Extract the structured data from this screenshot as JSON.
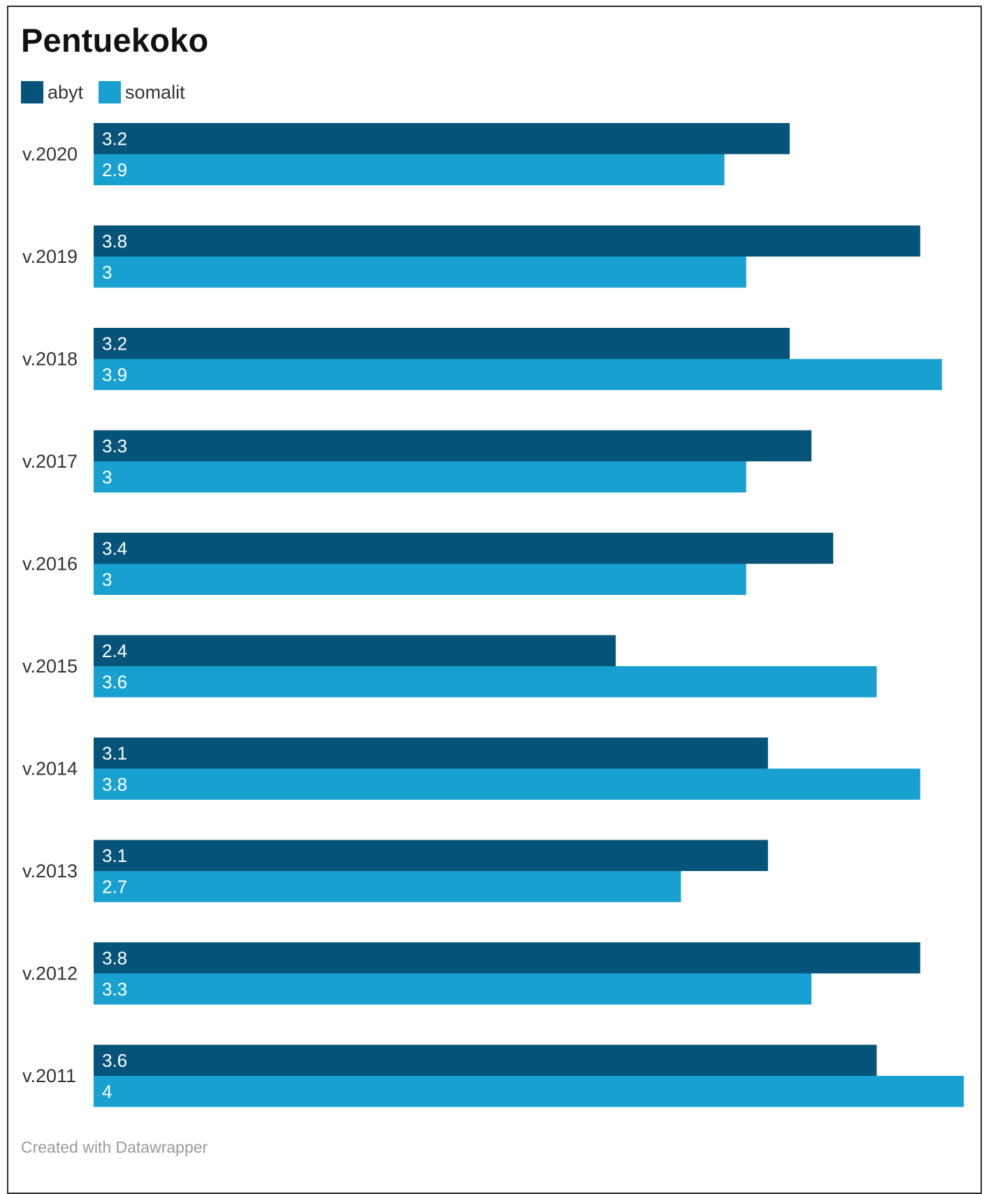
{
  "chart_data": {
    "type": "bar",
    "orientation": "horizontal",
    "title": "Pentuekoko",
    "categories": [
      "v.2020",
      "v.2019",
      "v.2018",
      "v.2017",
      "v.2016",
      "v.2015",
      "v.2014",
      "v.2013",
      "v.2012",
      "v.2011"
    ],
    "series": [
      {
        "name": "abyt",
        "color": "#06547a",
        "values": [
          3.2,
          3.8,
          3.2,
          3.3,
          3.4,
          2.4,
          3.1,
          3.1,
          3.8,
          3.6
        ],
        "labels": [
          "3.2",
          "3.8",
          "3.2",
          "3.3",
          "3.4",
          "2.4",
          "3.1",
          "3.1",
          "3.8",
          "3.6"
        ]
      },
      {
        "name": "somalit",
        "color": "#18a1d0",
        "values": [
          2.9,
          3,
          3.9,
          3,
          3,
          3.6,
          3.8,
          2.7,
          3.3,
          4
        ],
        "labels": [
          "2.9",
          "3",
          "3.9",
          "3",
          "3",
          "3.6",
          "3.8",
          "2.7",
          "3.3",
          "4"
        ]
      }
    ],
    "xlim": [
      0,
      4
    ],
    "grid": false,
    "legend_position": "top-left",
    "data_labels": "inside-start"
  },
  "footer": "Created with Datawrapper"
}
